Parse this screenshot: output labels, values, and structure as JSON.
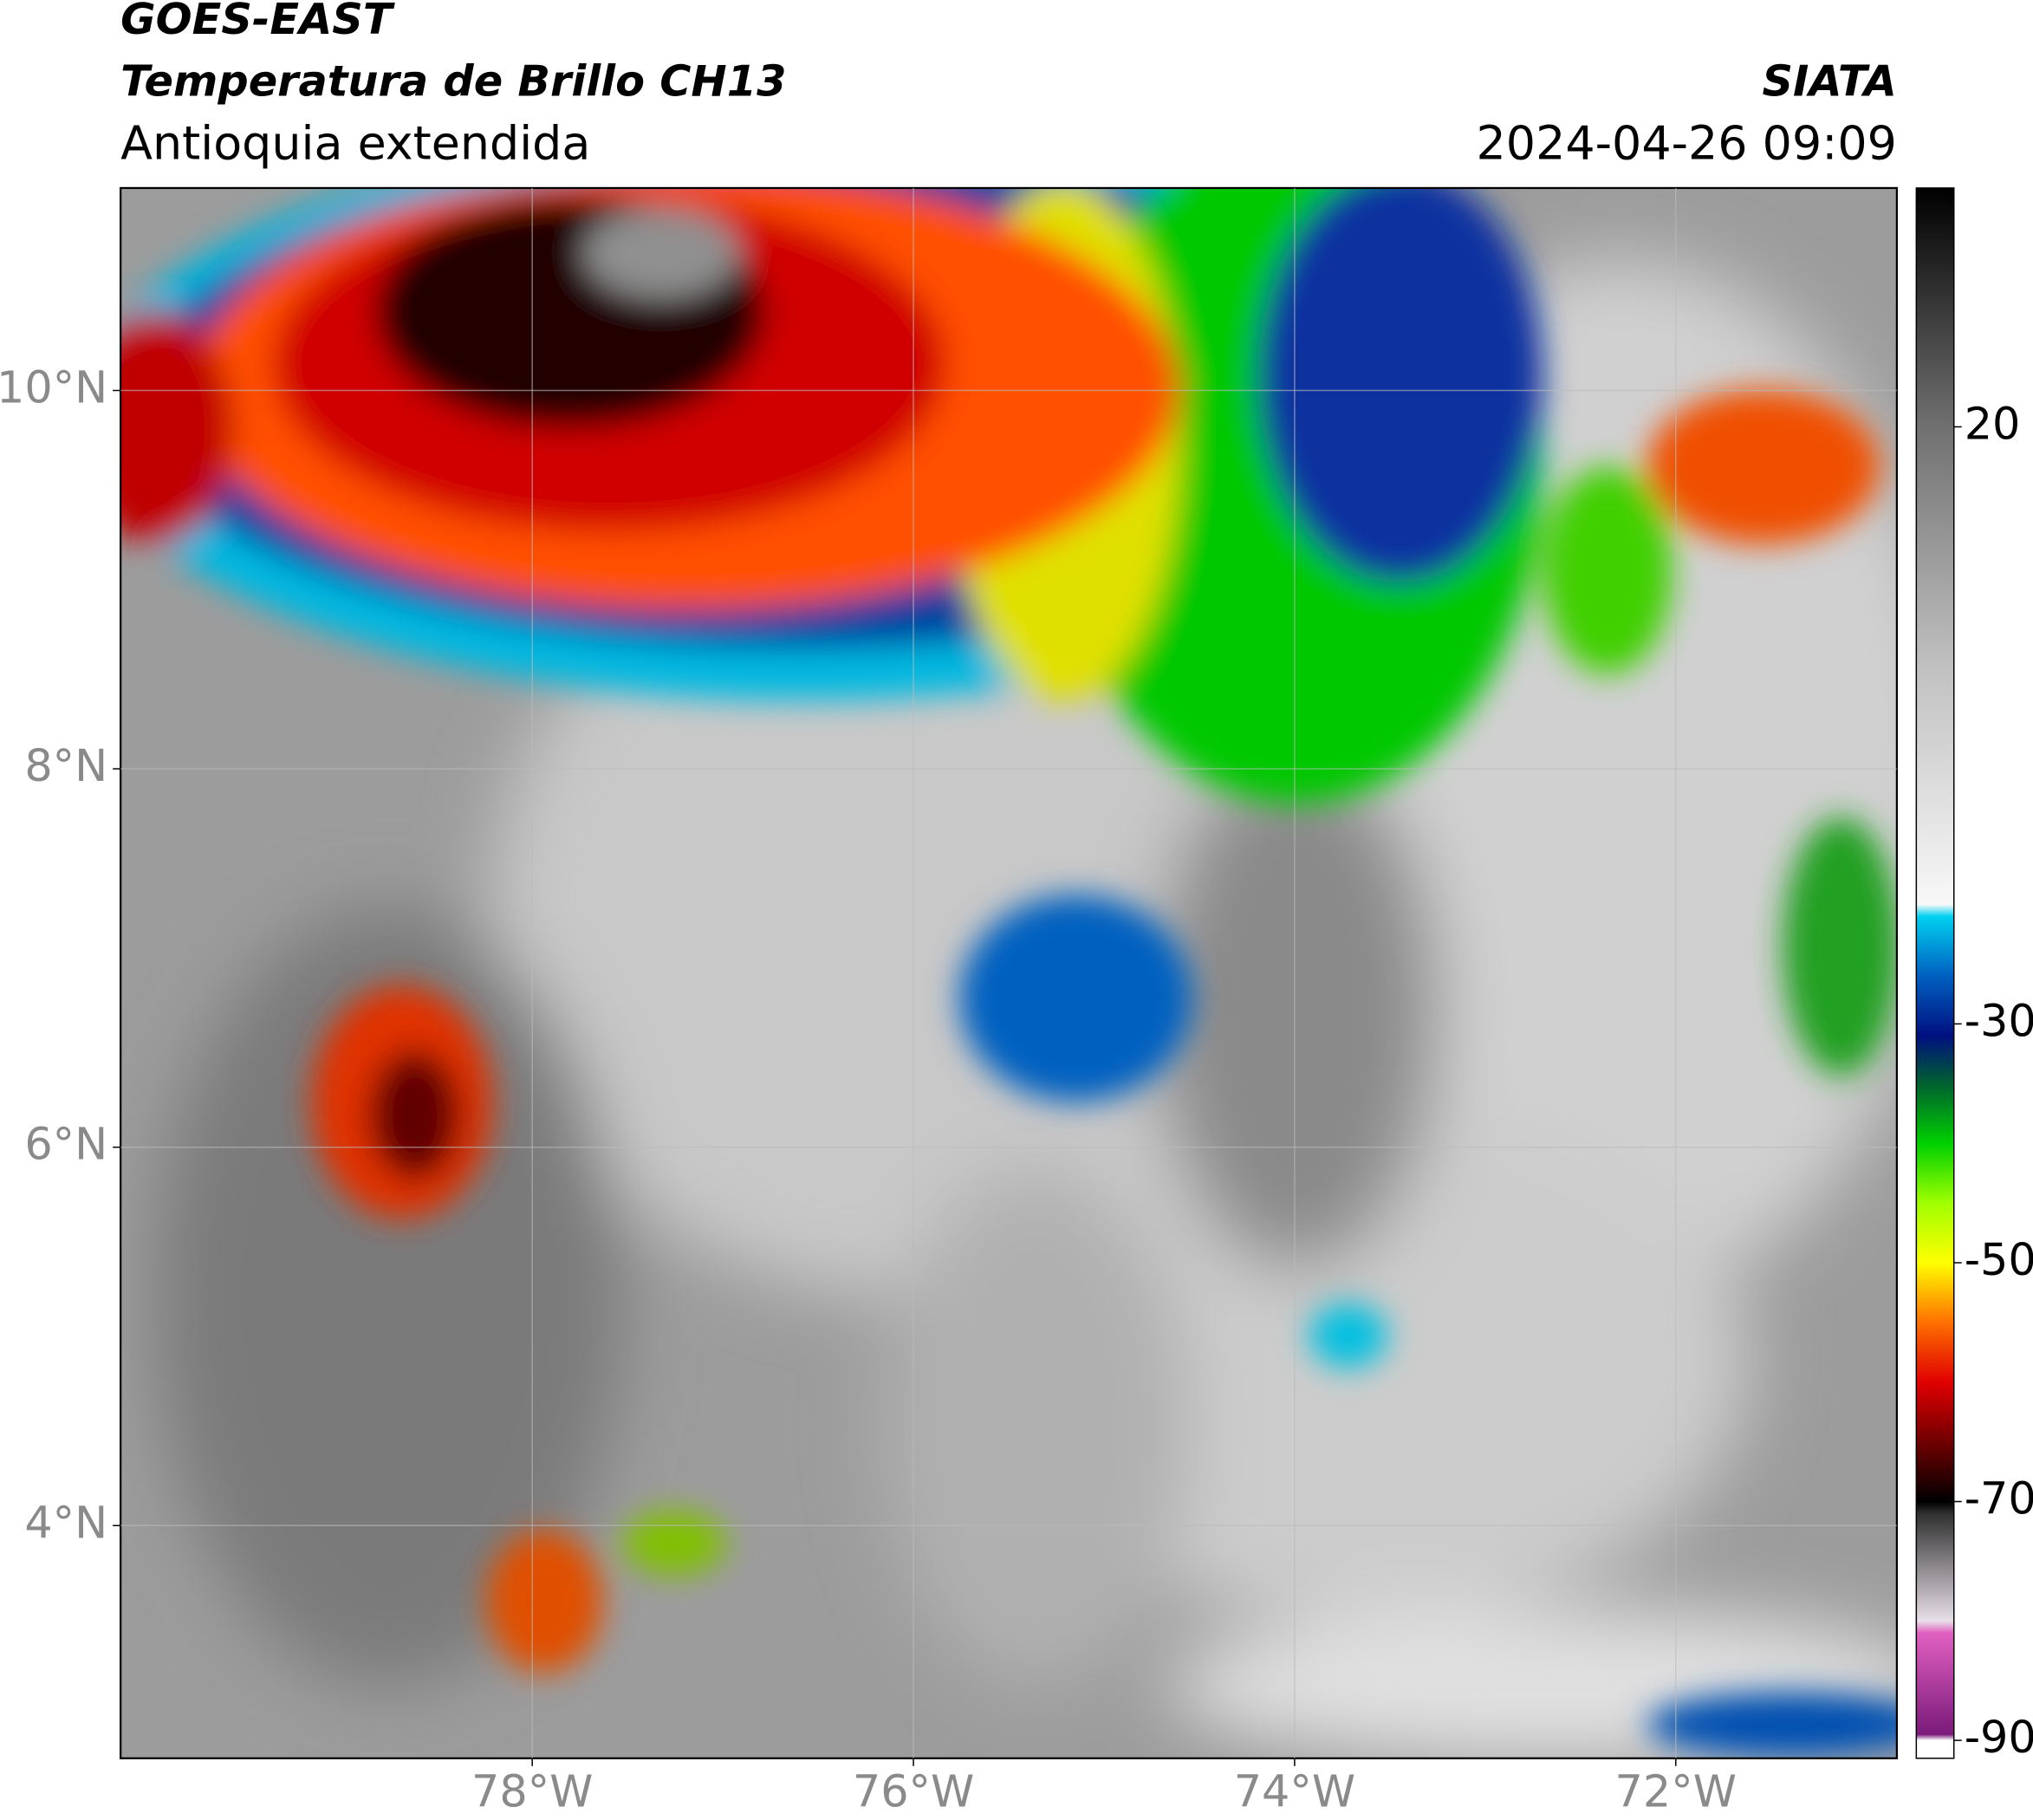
{
  "chart_data": {
    "type": "map",
    "title": [
      "GOES-EAST",
      "Temperatura de Brillo CH13"
    ],
    "subtitle": "Antioquia extendida",
    "source": "SIATA",
    "datetime": "2024-04-26 09:09",
    "xlim": [
      -80.16,
      -70.84
    ],
    "ylim": [
      2.77,
      11.07
    ],
    "xticks": [
      {
        "value": -78,
        "label": "78°W"
      },
      {
        "value": -76,
        "label": "76°W"
      },
      {
        "value": -74,
        "label": "74°W"
      },
      {
        "value": -72,
        "label": "72°W"
      }
    ],
    "yticks": [
      {
        "value": 4,
        "label": "4°N"
      },
      {
        "value": 6,
        "label": "6°N"
      },
      {
        "value": 8,
        "label": "8°N"
      },
      {
        "value": 10,
        "label": "10°N"
      }
    ],
    "grid": true,
    "colorbar": {
      "lim": [
        -91.5,
        40
      ],
      "ticks": [
        20,
        -30,
        -50,
        -70,
        -90
      ],
      "stops": [
        {
          "value": -91.5,
          "color": "#ffffff"
        },
        {
          "value": -90,
          "color": "#ffffff"
        },
        {
          "value": -89.5,
          "color": "#7a1a7a"
        },
        {
          "value": -81,
          "color": "#e060c0"
        },
        {
          "value": -80,
          "color": "#e8e0e8"
        },
        {
          "value": -71,
          "color": "#303030"
        },
        {
          "value": -70,
          "color": "#000000"
        },
        {
          "value": -65,
          "color": "#700000"
        },
        {
          "value": -60,
          "color": "#e00000"
        },
        {
          "value": -55,
          "color": "#ff7000"
        },
        {
          "value": -50,
          "color": "#ffff00"
        },
        {
          "value": -45,
          "color": "#a0ff00"
        },
        {
          "value": -40,
          "color": "#00d000"
        },
        {
          "value": -35,
          "color": "#006030"
        },
        {
          "value": -31,
          "color": "#001080"
        },
        {
          "value": -26,
          "color": "#0060c0"
        },
        {
          "value": -21,
          "color": "#00d0f0"
        },
        {
          "value": -20,
          "color": "#f8f8f8"
        },
        {
          "value": 0,
          "color": "#c0c0c0"
        },
        {
          "value": 20,
          "color": "#707070"
        },
        {
          "value": 40,
          "color": "#000000"
        }
      ]
    }
  }
}
